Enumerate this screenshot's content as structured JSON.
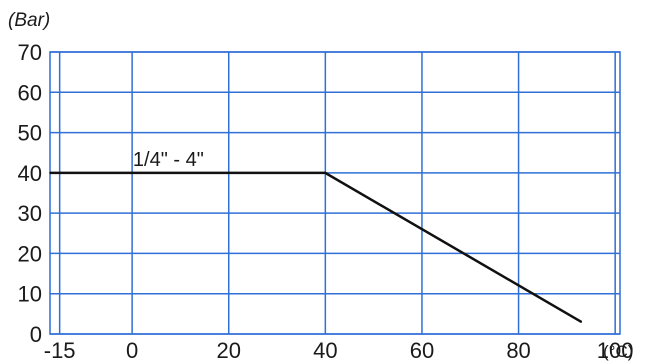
{
  "chart_data": {
    "type": "line",
    "y_unit_label": "(Bar)",
    "x_unit_label": "(°C)",
    "x_ticks": [
      -15,
      0,
      20,
      40,
      60,
      80,
      100
    ],
    "y_ticks": [
      0,
      10,
      20,
      30,
      40,
      50,
      60,
      70
    ],
    "xlim": [
      -17,
      101
    ],
    "ylim": [
      0,
      70
    ],
    "grid": true,
    "colors": {
      "grid": "#2f6fd6",
      "line": "#111111",
      "text": "#1a1a1a"
    },
    "series": [
      {
        "name": "1/4\" - 4\"",
        "points": [
          {
            "x": -17,
            "y": 40
          },
          {
            "x": 40,
            "y": 40
          },
          {
            "x": 93,
            "y": 3
          }
        ]
      }
    ]
  }
}
